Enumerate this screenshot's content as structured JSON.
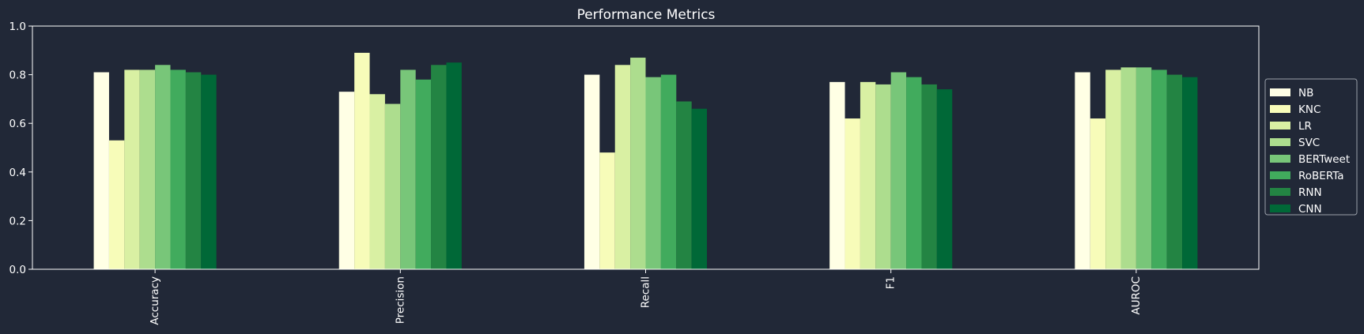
{
  "colors": {
    "background": "#212837",
    "foreground": "#ffffff",
    "series": [
      "#ffffe5",
      "#f7fcb9",
      "#d9f0a3",
      "#addd8e",
      "#78c679",
      "#41ab5d",
      "#238443",
      "#006837"
    ]
  },
  "chart_data": {
    "type": "bar",
    "title": "Performance Metrics",
    "xlabel": "",
    "ylabel": "",
    "ylim": [
      0,
      1.0
    ],
    "yticks": [
      "0.0",
      "0.2",
      "0.4",
      "0.6",
      "0.8",
      "1.0"
    ],
    "grid": false,
    "legend_position": "right",
    "categories": [
      "Accuracy",
      "Precision",
      "Recall",
      "F1",
      "AUROC"
    ],
    "series": [
      {
        "name": "NB",
        "color": "#ffffe5",
        "values": [
          0.81,
          0.73,
          0.8,
          0.77,
          0.81
        ]
      },
      {
        "name": "KNC",
        "color": "#f7fcb9",
        "values": [
          0.53,
          0.89,
          0.48,
          0.62,
          0.62
        ]
      },
      {
        "name": "LR",
        "color": "#d9f0a3",
        "values": [
          0.82,
          0.72,
          0.84,
          0.77,
          0.82
        ]
      },
      {
        "name": "SVC",
        "color": "#addd8e",
        "values": [
          0.82,
          0.68,
          0.87,
          0.76,
          0.83
        ]
      },
      {
        "name": "BERTweet",
        "color": "#78c679",
        "values": [
          0.84,
          0.82,
          0.79,
          0.81,
          0.83
        ]
      },
      {
        "name": "RoBERTa",
        "color": "#41ab5d",
        "values": [
          0.82,
          0.78,
          0.8,
          0.79,
          0.82
        ]
      },
      {
        "name": "RNN",
        "color": "#238443",
        "values": [
          0.81,
          0.84,
          0.69,
          0.76,
          0.8
        ]
      },
      {
        "name": "CNN",
        "color": "#006837",
        "values": [
          0.8,
          0.85,
          0.66,
          0.74,
          0.79
        ]
      }
    ]
  }
}
